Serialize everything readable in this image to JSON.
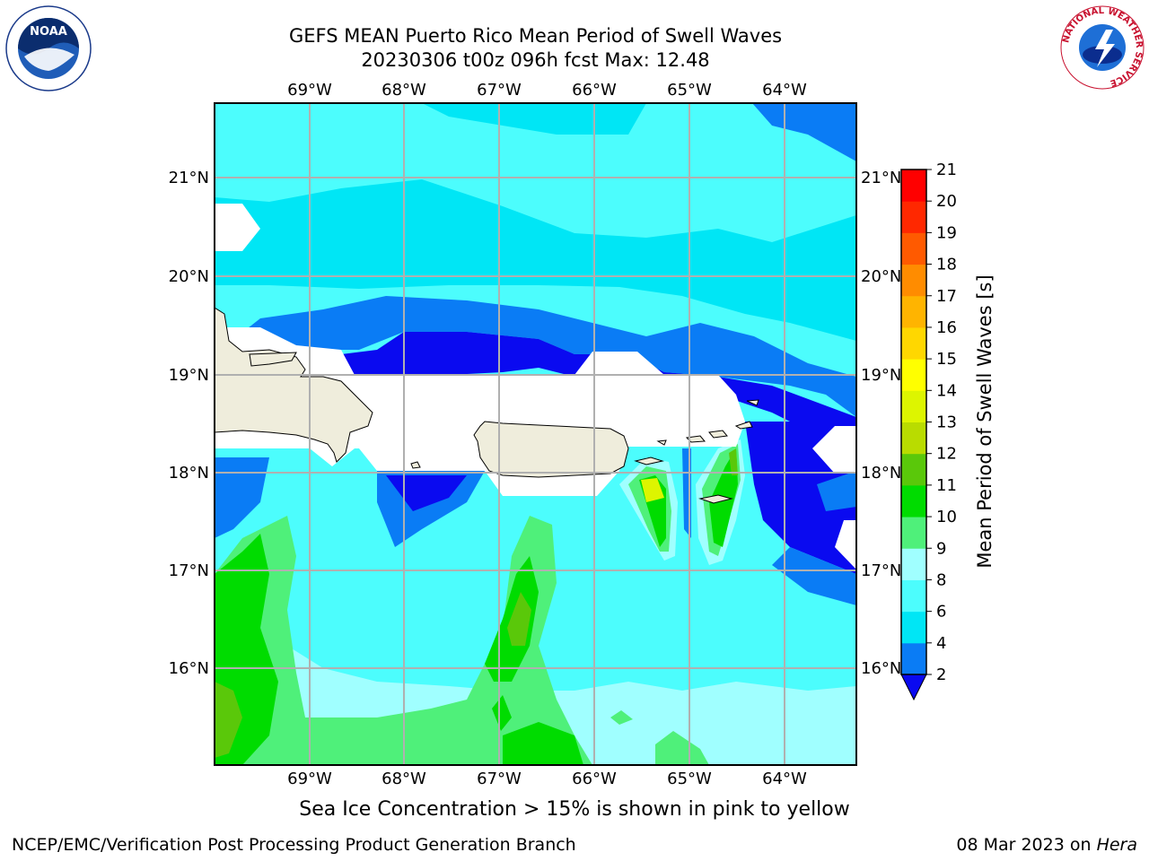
{
  "header": {
    "title_line1": "GEFS MEAN Puerto Rico Mean Period of Swell Waves",
    "title_line2": "20230306 t00z 096h fcst   Max: 12.48"
  },
  "map": {
    "lon_labels": [
      "69°W",
      "68°W",
      "67°W",
      "66°W",
      "65°W",
      "64°W"
    ],
    "lat_labels": [
      "21°N",
      "20°N",
      "19°N",
      "18°N",
      "17°N",
      "16°N"
    ]
  },
  "colorbar": {
    "label": "Mean Period of Swell Waves [s]",
    "ticks": [
      "2",
      "4",
      "6",
      "8",
      "9",
      "10",
      "11",
      "12",
      "13",
      "14",
      "15",
      "16",
      "17",
      "18",
      "19",
      "20",
      "21"
    ],
    "colors": [
      "#0a0af0",
      "#0a7cf5",
      "#00e6f5",
      "#4cfdfd",
      "#a0ffff",
      "#4ff07a",
      "#00dc00",
      "#5ac80a",
      "#b9dc00",
      "#ddf500",
      "#ffff00",
      "#ffd700",
      "#ffb400",
      "#ff8c00",
      "#ff5a00",
      "#ff2800",
      "#ff0000"
    ]
  },
  "caption": "Sea Ice Concentration > 15% is shown in pink to yellow",
  "footer": {
    "left": "NCEP/EMC/Verification Post Processing Product Generation Branch",
    "right_prefix": "08 Mar 2023 on ",
    "right_italic": "Hera"
  },
  "logos": {
    "noaa_text": "NOAA",
    "nws_ring_top": "NATIONAL WEATHER SERVICE"
  }
}
